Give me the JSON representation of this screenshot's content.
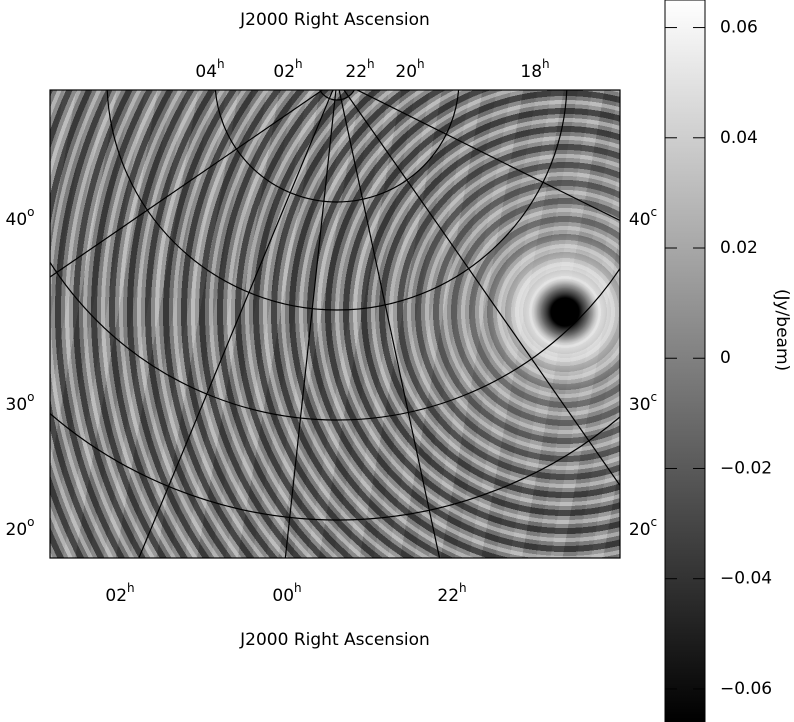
{
  "plot": {
    "top_title": "J2000 Right Ascension",
    "bottom_title": "J2000 Right Ascension",
    "top_ticks": [
      {
        "text": "04",
        "sup": "h"
      },
      {
        "text": "02",
        "sup": "h"
      },
      {
        "text": "22",
        "sup": "h"
      },
      {
        "text": "20",
        "sup": "h"
      },
      {
        "text": "18",
        "sup": "h"
      }
    ],
    "bottom_ticks": [
      {
        "text": "02",
        "sup": "h"
      },
      {
        "text": "00",
        "sup": "h"
      },
      {
        "text": "22",
        "sup": "h"
      }
    ],
    "left_ticks": [
      {
        "text": "40",
        "sup": "o"
      },
      {
        "text": "30",
        "sup": "o"
      },
      {
        "text": "20",
        "sup": "o"
      }
    ],
    "right_ticks": [
      {
        "text": "40",
        "sup": "c"
      },
      {
        "text": "30",
        "sup": "c"
      },
      {
        "text": "20",
        "sup": "c"
      }
    ]
  },
  "chart_data": {
    "type": "colorbar",
    "label": "(Jy/beam)",
    "ylim": [
      -0.066,
      0.065
    ],
    "yticks": [
      0.06,
      0.04,
      0.02,
      0,
      {
        "value": -0.02,
        "label": "−0.02"
      },
      {
        "value": -0.04,
        "label": "−0.04"
      },
      {
        "value": -0.06,
        "label": "−0.06"
      }
    ]
  }
}
